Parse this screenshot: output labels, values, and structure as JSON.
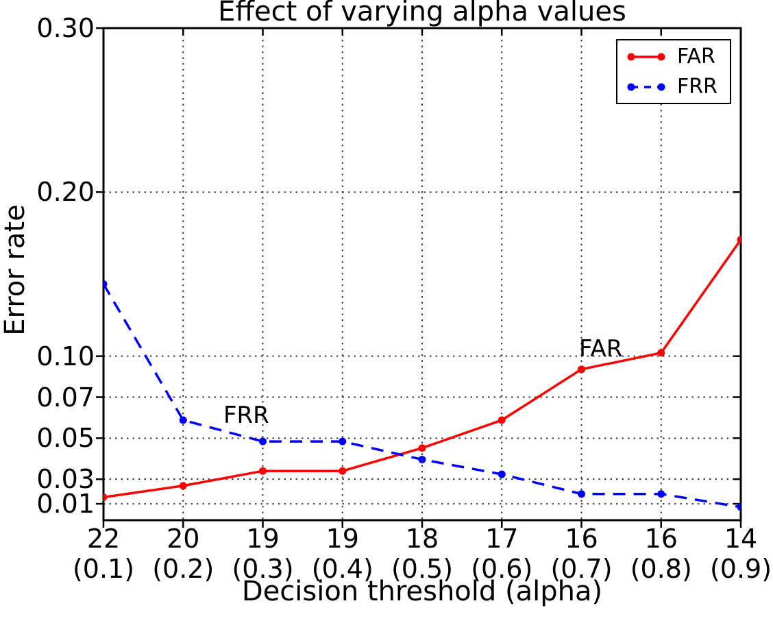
{
  "title": "Effect of varying alpha values",
  "annotations": {
    "frr": "FRR",
    "far": "FAR"
  },
  "legend": {
    "position": "upper right",
    "items": [
      {
        "label": "FAR",
        "color": "#ff0000",
        "style": "solid"
      },
      {
        "label": "FRR",
        "color": "#0000ff",
        "style": "dashed"
      }
    ]
  },
  "chart_data": {
    "type": "line",
    "title": "Effect of varying alpha values",
    "xlabel": "Decision threshold (alpha)",
    "ylabel": "Error rate",
    "ylim": [
      0,
      0.3
    ],
    "grid": true,
    "legend_position": "upper right",
    "x_alpha": [
      0.1,
      0.2,
      0.3,
      0.4,
      0.5,
      0.6,
      0.7,
      0.8,
      0.9
    ],
    "x_thresholds": [
      22,
      20,
      19,
      19,
      18,
      17,
      16,
      16,
      14
    ],
    "xticks": [
      {
        "threshold": "22",
        "alpha": "(0.1)"
      },
      {
        "threshold": "20",
        "alpha": "(0.2)"
      },
      {
        "threshold": "19",
        "alpha": "(0.3)"
      },
      {
        "threshold": "19",
        "alpha": "(0.4)"
      },
      {
        "threshold": "18",
        "alpha": "(0.5)"
      },
      {
        "threshold": "17",
        "alpha": "(0.6)"
      },
      {
        "threshold": "16",
        "alpha": "(0.7)"
      },
      {
        "threshold": "16",
        "alpha": "(0.8)"
      },
      {
        "threshold": "14",
        "alpha": "(0.9)"
      }
    ],
    "yticks": [
      {
        "value": 0.3,
        "label": "0.30"
      },
      {
        "value": 0.2,
        "label": "0.20"
      },
      {
        "value": 0.1,
        "label": "0.10"
      },
      {
        "value": 0.075,
        "label": "0.07"
      },
      {
        "value": 0.05,
        "label": "0.05"
      },
      {
        "value": 0.025,
        "label": "0.03"
      },
      {
        "value": 0.01,
        "label": "0.01"
      }
    ],
    "series": [
      {
        "name": "FAR",
        "color": "#ff0000",
        "dash": "solid",
        "values": [
          0.014,
          0.021,
          0.03,
          0.03,
          0.044,
          0.061,
          0.092,
          0.102,
          0.171
        ]
      },
      {
        "name": "FRR",
        "color": "#0000ff",
        "dash": "dashed",
        "values": [
          0.144,
          0.061,
          0.048,
          0.048,
          0.037,
          0.028,
          0.016,
          0.016,
          0.008
        ]
      }
    ]
  }
}
